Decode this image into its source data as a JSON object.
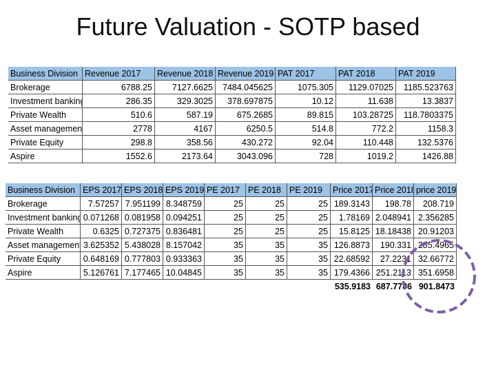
{
  "title": "Future Valuation - SOTP based",
  "tables": [
    {
      "headers": [
        "Business Division",
        "Revenue 2017",
        "Revenue 2018",
        "Revenue 2019",
        "PAT 2017",
        "PAT 2018",
        "PAT 2019"
      ],
      "rows": [
        [
          "Brokerage",
          "6788.25",
          "7127.6625",
          "7484.045625",
          "1075.305",
          "1129.07025",
          "1185.523763"
        ],
        [
          "Investment banking",
          "286.35",
          "329.3025",
          "378.697875",
          "10.12",
          "11.638",
          "13.3837"
        ],
        [
          "Private Wealth",
          "510.6",
          "587.19",
          "675.2685",
          "89.815",
          "103.28725",
          "118.7803375"
        ],
        [
          "Asset management",
          "2778",
          "4167",
          "6250.5",
          "514.8",
          "772.2",
          "1158.3"
        ],
        [
          "Private Equity",
          "298.8",
          "358.56",
          "430.272",
          "92.04",
          "110.448",
          "132.5376"
        ],
        [
          "Aspire",
          "1552.6",
          "2173.64",
          "3043.096",
          "728",
          "1019.2",
          "1426.88"
        ]
      ]
    },
    {
      "headers": [
        "Business Division",
        "EPS 2017",
        "EPS 2018",
        "EPS 2019",
        "PE 2017",
        "PE 2018",
        "PE 2019",
        "Price 2017",
        "Price 2018",
        "price 2019"
      ],
      "rows": [
        [
          "Brokerage",
          "7.57257",
          "7.951199",
          "8.348759",
          "25",
          "25",
          "25",
          "189.3143",
          "198.78",
          "208.719"
        ],
        [
          "Investment banking",
          "0.071268",
          "0.081958",
          "0.094251",
          "25",
          "25",
          "25",
          "1.78169",
          "2.048941",
          "2.356285"
        ],
        [
          "Private Wealth",
          "0.6325",
          "0.727375",
          "0.836481",
          "25",
          "25",
          "25",
          "15.8125",
          "18.18438",
          "20.91203"
        ],
        [
          "Asset management",
          "3.625352",
          "5.438028",
          "8.157042",
          "35",
          "35",
          "35",
          "126.8873",
          "190.331",
          "285.4965"
        ],
        [
          "Private Equity",
          "0.648169",
          "0.777803",
          "0.933363",
          "35",
          "35",
          "35",
          "22.68592",
          "27.2231",
          "32.66772"
        ],
        [
          "Aspire",
          "5.126761",
          "7.177465",
          "10.04845",
          "35",
          "35",
          "35",
          "179.4366",
          "251.2113",
          "351.6958"
        ]
      ],
      "totals": [
        "535.9183",
        "687.7786",
        "901.8473"
      ]
    }
  ]
}
